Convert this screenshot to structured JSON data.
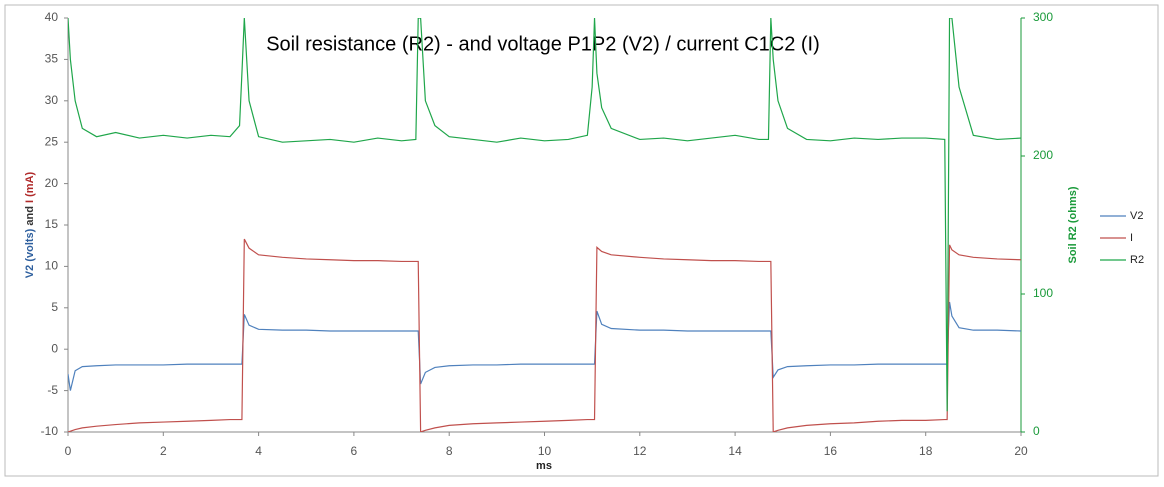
{
  "chart_data": {
    "type": "line",
    "title": "Soil resistance (R2) - and voltage P1P2 (V2) / current C1C2 (I)",
    "x_label": "ms",
    "y_label": [
      "V2 (volts)",
      "and",
      "I (mA)"
    ],
    "y_label_colors": [
      "#2e5f9e",
      "#333333",
      "#b02a2a"
    ],
    "y2_label": "Soil R2 (ohms)",
    "y2_color": "#1a9a3a",
    "xlim": [
      0,
      20
    ],
    "xticks": [
      0,
      2,
      4,
      6,
      8,
      10,
      12,
      14,
      16,
      18,
      20
    ],
    "ylim": [
      -10,
      40
    ],
    "yticks": [
      -10,
      -5,
      0,
      5,
      10,
      15,
      20,
      25,
      30,
      35,
      40
    ],
    "y2lim": [
      0,
      300
    ],
    "y2ticks": [
      0,
      100,
      200,
      300
    ],
    "grid": false,
    "legend": "right",
    "x": [
      0,
      0.05,
      0.15,
      0.3,
      0.6,
      1,
      1.5,
      2,
      2.5,
      3,
      3.4,
      3.6,
      3.65,
      3.7,
      3.8,
      4,
      4.5,
      5,
      5.5,
      6,
      6.5,
      7,
      7.3,
      7.35,
      7.4,
      7.5,
      7.7,
      8,
      8.5,
      9,
      9.5,
      10,
      10.5,
      10.9,
      11.0,
      11.05,
      11.1,
      11.2,
      11.4,
      12,
      12.5,
      13,
      13.5,
      14,
      14.5,
      14.7,
      14.75,
      14.8,
      14.9,
      15.1,
      15.5,
      16,
      16.5,
      17,
      17.5,
      18,
      18.4,
      18.45,
      18.5,
      18.55,
      18.7,
      19,
      19.5,
      20
    ],
    "series": [
      {
        "name": "V2",
        "color": "#4f81bd",
        "values": [
          -3,
          -5,
          -2.6,
          -2.1,
          -2,
          -1.9,
          -1.9,
          -1.9,
          -1.8,
          -1.8,
          -1.8,
          -1.8,
          -1.8,
          4.2,
          2.9,
          2.4,
          2.3,
          2.3,
          2.2,
          2.2,
          2.2,
          2.2,
          2.2,
          2.2,
          -4.2,
          -2.8,
          -2.2,
          -2.0,
          -1.9,
          -1.9,
          -1.8,
          -1.8,
          -1.8,
          -1.8,
          -1.8,
          -1.8,
          4.6,
          3.0,
          2.5,
          2.3,
          2.3,
          2.2,
          2.2,
          2.2,
          2.2,
          2.2,
          2.2,
          -3.4,
          -2.5,
          -2.1,
          -2,
          -1.9,
          -1.9,
          -1.8,
          -1.8,
          -1.8,
          -1.8,
          -1.8,
          5.7,
          4,
          2.6,
          2.3,
          2.3,
          2.2
        ]
      },
      {
        "name": "I",
        "color": "#c0504d",
        "values": [
          -10,
          -9.9,
          -9.7,
          -9.5,
          -9.3,
          -9.1,
          -8.9,
          -8.8,
          -8.7,
          -8.6,
          -8.5,
          -8.5,
          -8.5,
          13.3,
          12.2,
          11.4,
          11.1,
          10.9,
          10.8,
          10.7,
          10.7,
          10.6,
          10.6,
          10.6,
          -10,
          -9.8,
          -9.5,
          -9.2,
          -9,
          -8.9,
          -8.8,
          -8.7,
          -8.6,
          -8.5,
          -8.5,
          -8.5,
          12.3,
          11.8,
          11.4,
          11.1,
          10.9,
          10.8,
          10.7,
          10.7,
          10.6,
          10.6,
          10.6,
          -10,
          -9.8,
          -9.5,
          -9.2,
          -9,
          -8.9,
          -8.7,
          -8.6,
          -8.6,
          -8.5,
          -8.5,
          12.6,
          12,
          11.4,
          11.1,
          10.9,
          10.8
        ]
      },
      {
        "name": "R2",
        "color": "#1fa64a",
        "axis": "y2",
        "values": [
          300,
          270,
          240,
          220,
          214,
          217,
          213,
          215,
          213,
          215,
          214,
          222,
          260,
          300,
          240,
          214,
          210,
          211,
          212,
          210,
          213,
          211,
          212,
          300,
          300,
          240,
          222,
          214,
          212,
          210,
          213,
          211,
          212,
          215,
          250,
          300,
          260,
          235,
          220,
          212,
          213,
          211,
          213,
          215,
          212,
          212,
          300,
          270,
          240,
          220,
          212,
          211,
          213,
          212,
          213,
          213,
          212,
          15,
          300,
          300,
          250,
          215,
          212,
          213
        ]
      }
    ]
  }
}
